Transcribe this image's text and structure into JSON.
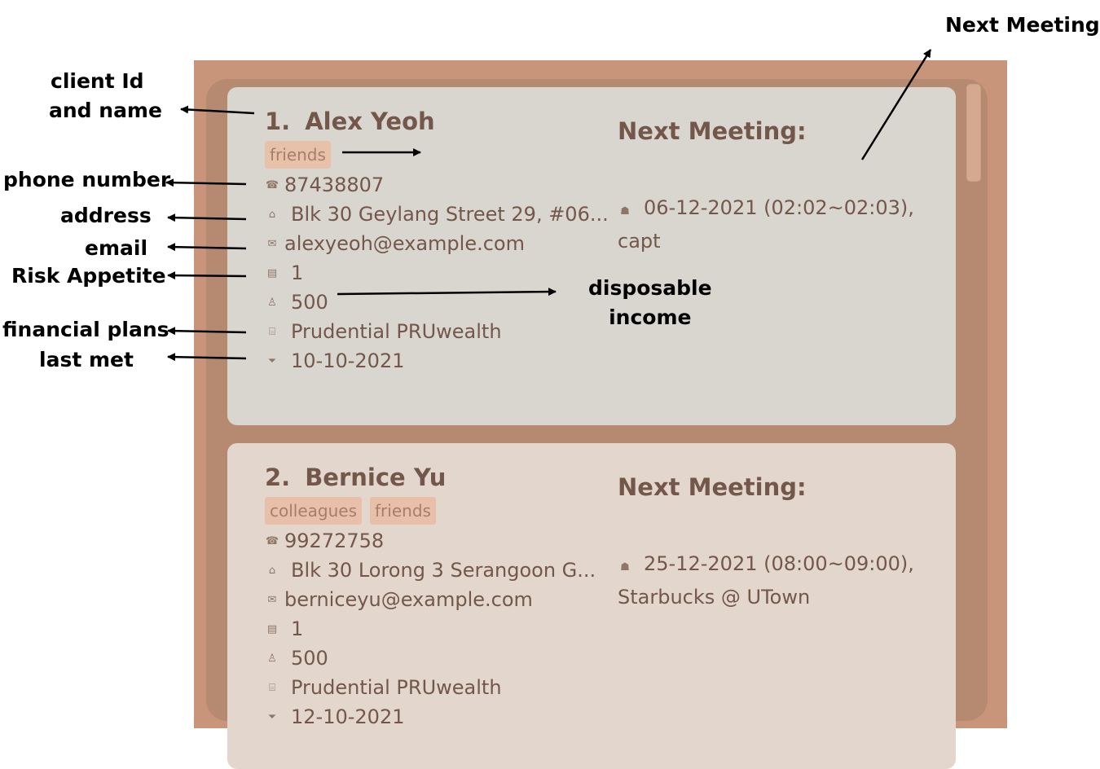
{
  "annotations": {
    "client_id_name": [
      "client Id",
      "and name"
    ],
    "phone": "phone number",
    "address": "address",
    "email": "email",
    "risk": "Risk Appetite",
    "plans": "financial plans",
    "last_met": "last met",
    "disposable": [
      "disposable",
      "income"
    ],
    "next_meeting": "Next Meeting"
  },
  "icons": {
    "phone": "telephone-icon",
    "address": "house-icon",
    "email": "envelope-icon",
    "risk": "chart-icon",
    "income": "money-bag-icon",
    "plans": "bank-icon",
    "last_met": "handshake-icon",
    "meeting": "meeting-icon"
  },
  "clients": [
    {
      "index": "1.",
      "name": "Alex Yeoh",
      "tags": [
        "friends"
      ],
      "phone": "87438807",
      "address": "Blk 30 Geylang Street 29, #06...",
      "email": "alexyeoh@example.com",
      "risk_appetite": "1",
      "disposable_income": "500",
      "financial_plans": "Prudential PRUwealth",
      "last_met": "10-10-2021",
      "next_meeting_label": "Next Meeting:",
      "next_meeting": "06-12-2021 (02:02~02:03),",
      "next_meeting_location": "capt"
    },
    {
      "index": "2.",
      "name": "Bernice Yu",
      "tags": [
        "colleagues",
        "friends"
      ],
      "phone": "99272758",
      "address": "Blk 30 Lorong 3 Serangoon G...",
      "email": "berniceyu@example.com",
      "risk_appetite": "1",
      "disposable_income": "500",
      "financial_plans": "Prudential PRUwealth",
      "last_met": "12-10-2021",
      "next_meeting_label": "Next Meeting:",
      "next_meeting": "25-12-2021 (08:00~09:00),",
      "next_meeting_location": "Starbucks @ UTown"
    }
  ],
  "colors": {
    "frame": "#c9957a",
    "list_bg": "#b68a70",
    "card_selected": "#d9d6d0",
    "card": "#e3d6cc",
    "text": "#73574a",
    "tag_bg": "#e8c0a9"
  }
}
